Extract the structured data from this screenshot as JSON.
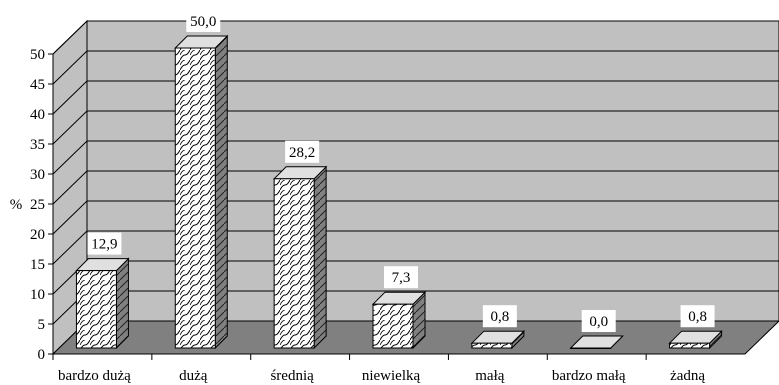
{
  "chart_data": {
    "type": "bar",
    "categories": [
      "bardzo dużą",
      "dużą",
      "średnią",
      "niewielką",
      "małą",
      "bardzo małą",
      "żadną"
    ],
    "values": [
      12.9,
      50.0,
      28.2,
      7.3,
      0.8,
      0.0,
      0.8
    ],
    "data_labels": [
      "12,9",
      "50,0",
      "28,2",
      "7,3",
      "0,8",
      "0,0",
      "0,8"
    ],
    "y_ticks": [
      "0",
      "5",
      "10",
      "15",
      "20",
      "25",
      "30",
      "35",
      "40",
      "45",
      "50"
    ],
    "ylim": [
      0,
      50
    ],
    "ylabel": "%",
    "xlabel": "",
    "title": "",
    "grid": true,
    "legend": "none",
    "style": "3d-bars",
    "colors": {
      "back_wall": "#c0c0c0",
      "floor": "#808080",
      "bar_front": "#ffffff",
      "bar_side": "#808080",
      "bar_top": "#e0e0e0",
      "label_box": "#ffffff",
      "line": "#000000"
    }
  }
}
